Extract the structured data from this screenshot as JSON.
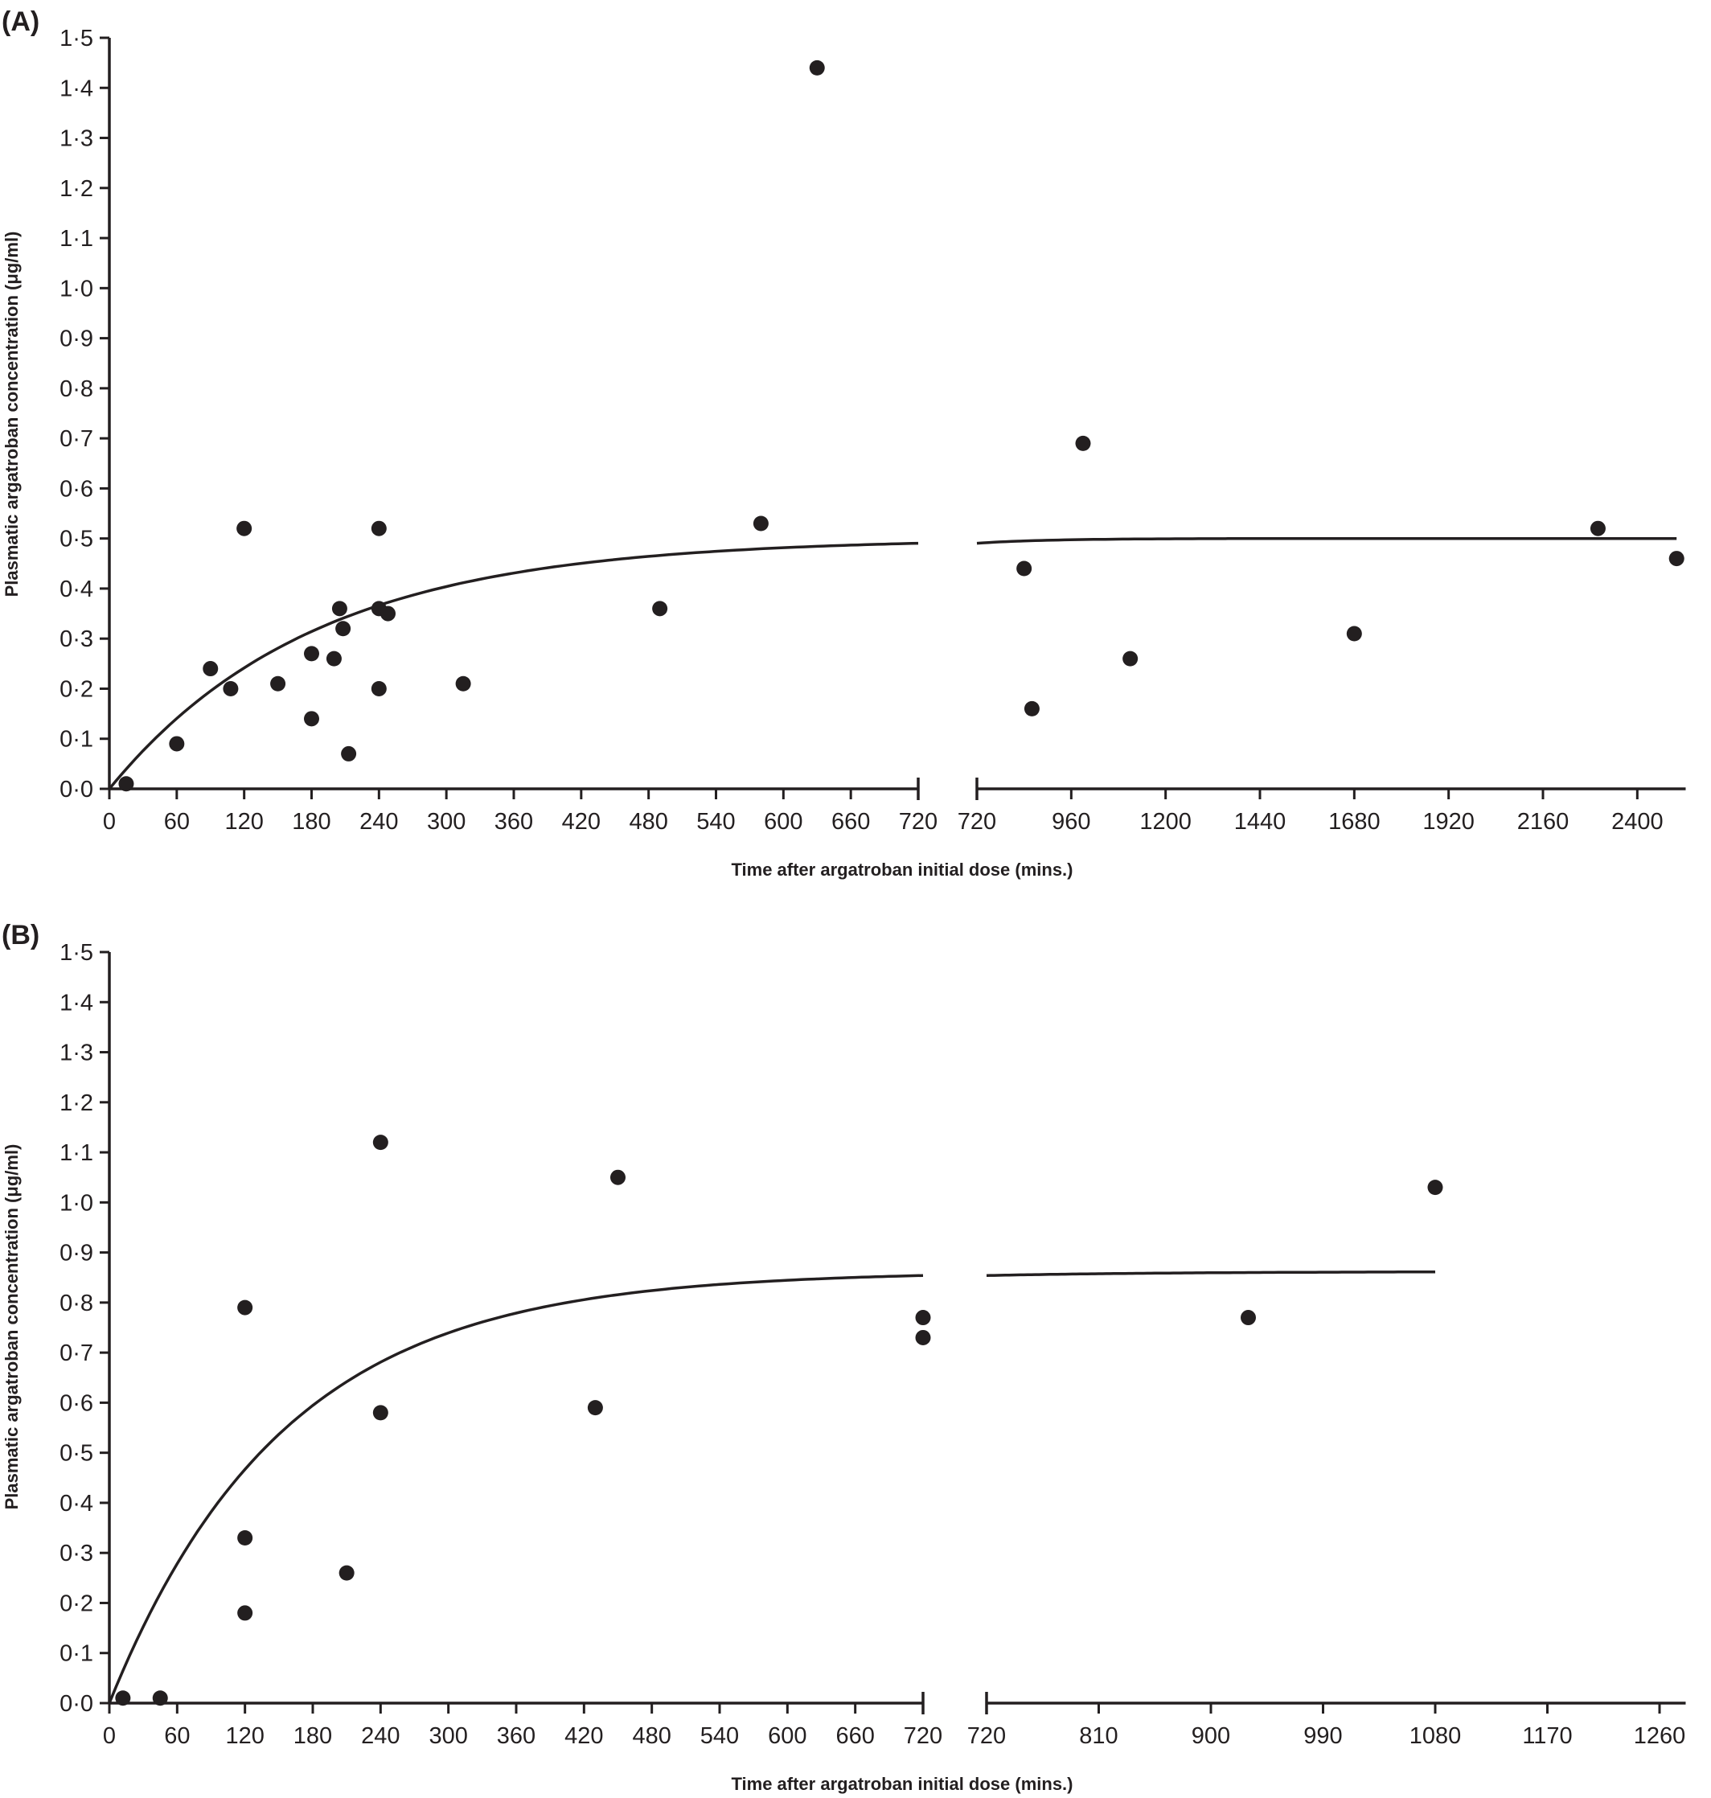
{
  "chart_data": [
    {
      "panel": "(A)",
      "type": "scatter",
      "ylabel": "Plasmatic argatroban concentration (μg/ml)",
      "xlabel": "Time after argatroban initial dose (mins.)",
      "ylim": [
        0,
        1.5
      ],
      "yticks": [
        "0·0",
        "0·1",
        "0·2",
        "0·3",
        "0·4",
        "0·5",
        "0·6",
        "0·7",
        "0·8",
        "0·9",
        "1·0",
        "1·1",
        "1·2",
        "1·3",
        "1·4",
        "1·5"
      ],
      "xaxis_segments": [
        {
          "range": [
            0,
            720
          ],
          "ticks": [
            0,
            60,
            120,
            180,
            240,
            300,
            360,
            420,
            480,
            540,
            600,
            660,
            720
          ]
        },
        {
          "range": [
            720,
            2520
          ],
          "ticks": [
            720,
            960,
            1200,
            1440,
            1680,
            1920,
            2160,
            2400
          ]
        }
      ],
      "points": [
        [
          15,
          0.01
        ],
        [
          60,
          0.09
        ],
        [
          90,
          0.24
        ],
        [
          108,
          0.2
        ],
        [
          120,
          0.52
        ],
        [
          150,
          0.21
        ],
        [
          180,
          0.27
        ],
        [
          180,
          0.14
        ],
        [
          200,
          0.26
        ],
        [
          205,
          0.36
        ],
        [
          208,
          0.32
        ],
        [
          213,
          0.07
        ],
        [
          240,
          0.52
        ],
        [
          240,
          0.36
        ],
        [
          240,
          0.2
        ],
        [
          248,
          0.35
        ],
        [
          315,
          0.21
        ],
        [
          490,
          0.36
        ],
        [
          580,
          0.53
        ],
        [
          630,
          1.44
        ],
        [
          840,
          0.44
        ],
        [
          860,
          0.16
        ],
        [
          990,
          0.69
        ],
        [
          1110,
          0.26
        ],
        [
          1680,
          0.31
        ],
        [
          2300,
          0.52
        ],
        [
          2500,
          0.46
        ]
      ],
      "fit": {
        "plateau": 0.5,
        "k": 0.0055,
        "segments": [
          [
            0,
            720
          ],
          [
            720,
            2500
          ]
        ]
      },
      "grid": false,
      "legend": "none"
    },
    {
      "panel": "(B)",
      "type": "scatter",
      "ylabel": "Plasmatic argatroban concentration (μg/ml)",
      "xlabel": "Time after argatroban initial dose (mins.)",
      "ylim": [
        0,
        1.5
      ],
      "yticks": [
        "0·0",
        "0·1",
        "0·2",
        "0·3",
        "0·4",
        "0·5",
        "0·6",
        "0·7",
        "0·8",
        "0·9",
        "1·0",
        "1·1",
        "1·2",
        "1·3",
        "1·4",
        "1·5"
      ],
      "xaxis_segments": [
        {
          "range": [
            0,
            720
          ],
          "ticks": [
            0,
            60,
            120,
            180,
            240,
            300,
            360,
            420,
            480,
            540,
            600,
            660,
            720
          ]
        },
        {
          "range": [
            720,
            1280
          ],
          "ticks": [
            720,
            810,
            900,
            990,
            1080,
            1170,
            1260
          ]
        }
      ],
      "points": [
        [
          12,
          0.01
        ],
        [
          45,
          0.01
        ],
        [
          120,
          0.79
        ],
        [
          120,
          0.33
        ],
        [
          120,
          0.18
        ],
        [
          210,
          0.26
        ],
        [
          240,
          1.12
        ],
        [
          240,
          0.58
        ],
        [
          430,
          0.59
        ],
        [
          450,
          1.05
        ],
        [
          720,
          0.77
        ],
        [
          720,
          0.73
        ],
        [
          930,
          0.77
        ],
        [
          1080,
          1.03
        ]
      ],
      "fit": {
        "plateau": 0.862,
        "k": 0.0065,
        "segments": [
          [
            0,
            720
          ],
          [
            720,
            1080
          ]
        ]
      },
      "grid": false,
      "legend": "none"
    }
  ]
}
